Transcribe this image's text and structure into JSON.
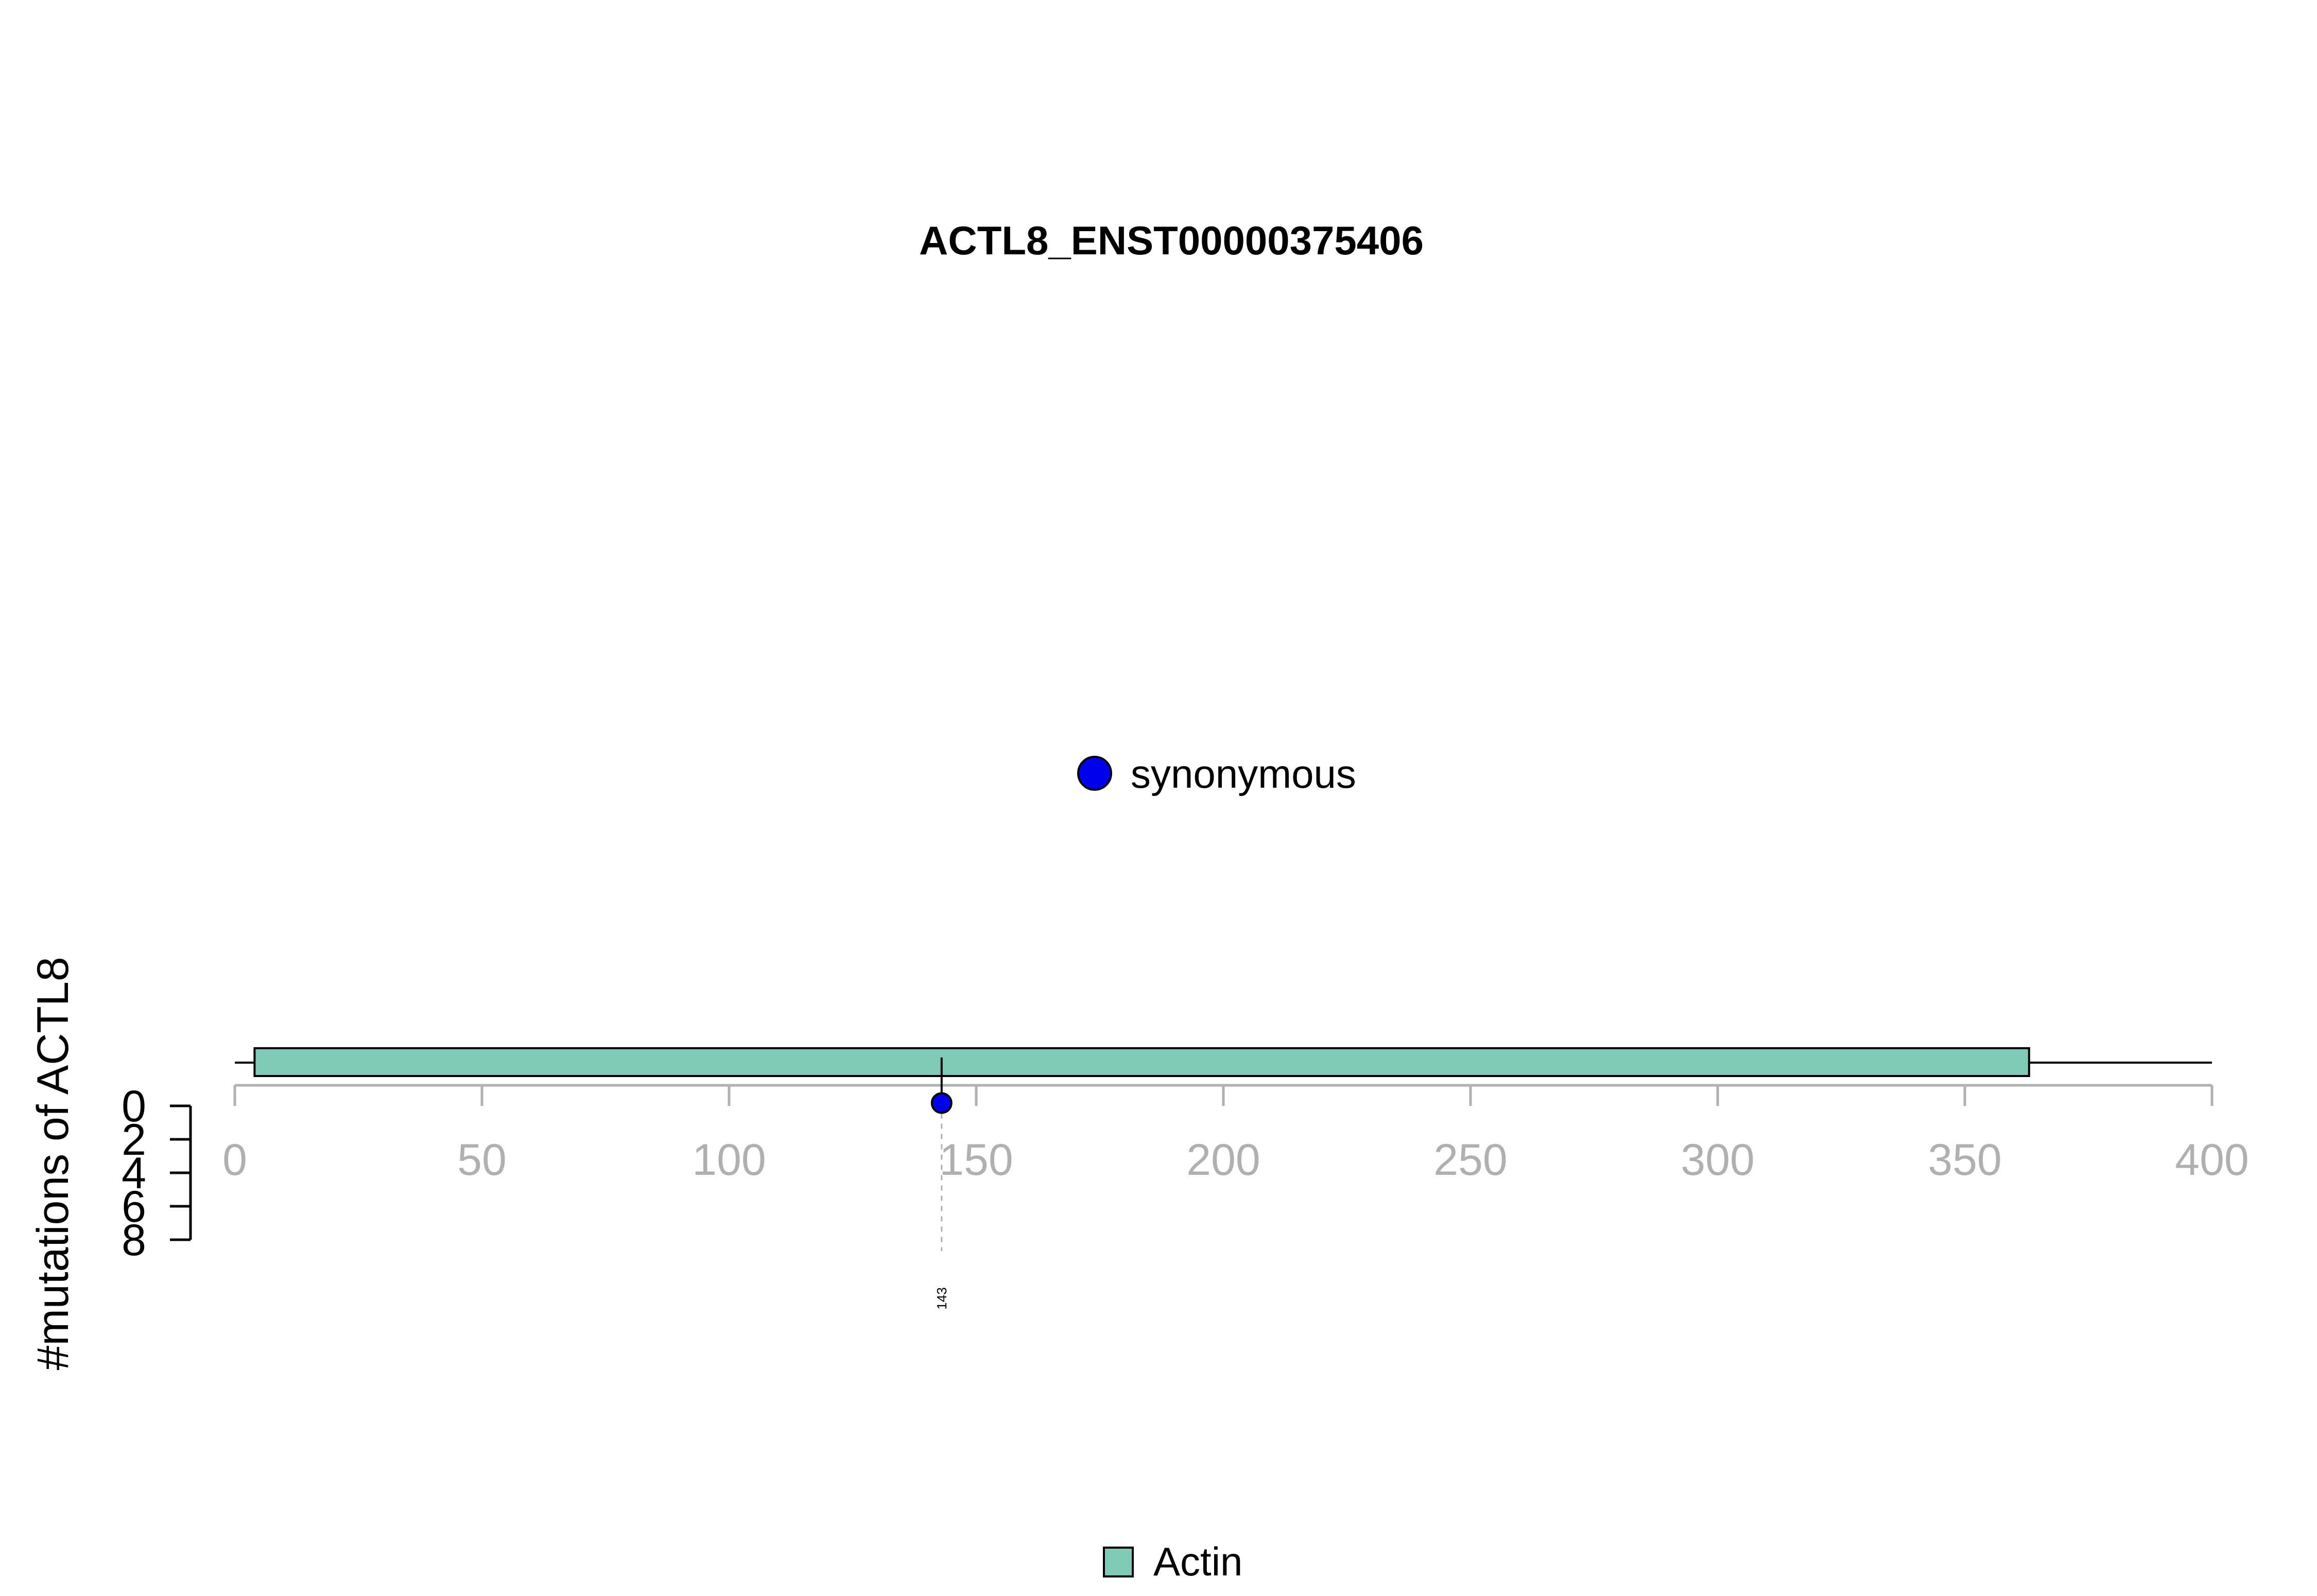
{
  "chart_data": {
    "type": "lollipop",
    "title": "ACTL8_ENST00000375406",
    "protein_length": 400,
    "x_axis": {
      "range": [
        0,
        400
      ],
      "ticks": [
        0,
        50,
        100,
        150,
        200,
        250,
        300,
        350,
        400
      ],
      "tick_labels": [
        "0",
        "50",
        "100",
        "150",
        "200",
        "250",
        "300",
        "350",
        "400"
      ],
      "color": "#b0b0b0"
    },
    "y_axis": {
      "label": "#mutations of ACTL8",
      "range": [
        0,
        8
      ],
      "ticks": [
        0,
        2,
        4,
        6,
        8
      ],
      "tick_labels": [
        "0",
        "2",
        "4",
        "6",
        "8"
      ],
      "direction": "downward"
    },
    "domains": [
      {
        "name": "Actin",
        "start": 4,
        "end": 363,
        "color": "#7fcbb8"
      }
    ],
    "mutations": [
      {
        "position": 143,
        "count": 1,
        "type": "synonymous",
        "label": "143",
        "color": "#0000ee"
      }
    ],
    "mutation_legend": [
      {
        "label": "synonymous",
        "color": "#0000ee"
      }
    ],
    "domain_legend": [
      {
        "label": "Actin",
        "color": "#7fcbb8"
      }
    ],
    "grid": false
  }
}
